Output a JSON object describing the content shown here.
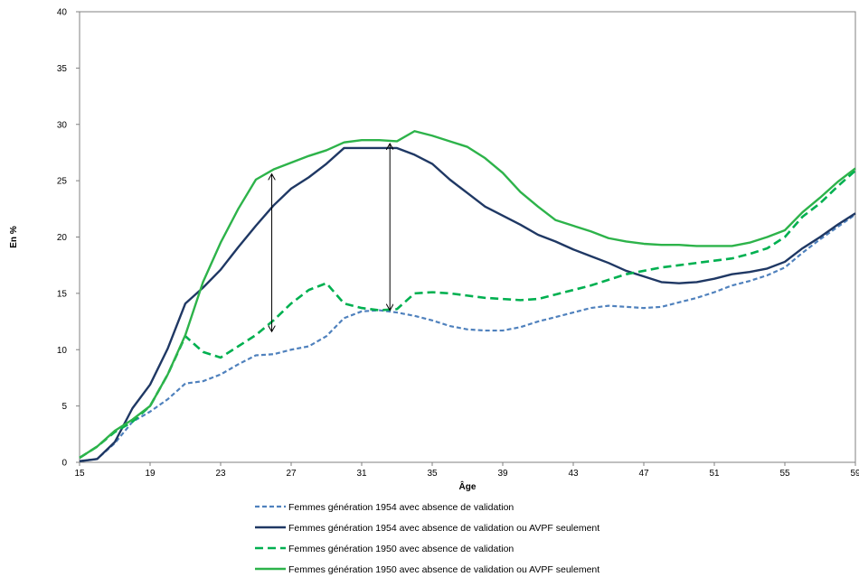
{
  "chart_data": {
    "type": "line",
    "xlabel": "Âge",
    "ylabel": "En %",
    "xlim": [
      15,
      59
    ],
    "ylim": [
      0,
      40
    ],
    "x_ticks": [
      15,
      19,
      23,
      27,
      31,
      35,
      39,
      43,
      47,
      51,
      55,
      59
    ],
    "y_ticks": [
      0,
      5,
      10,
      15,
      20,
      25,
      30,
      35,
      40
    ],
    "grid": false,
    "legend_position": "bottom",
    "x": [
      15,
      16,
      17,
      18,
      19,
      20,
      21,
      22,
      23,
      24,
      25,
      26,
      27,
      28,
      29,
      30,
      31,
      32,
      33,
      34,
      35,
      36,
      37,
      38,
      39,
      40,
      41,
      42,
      43,
      44,
      45,
      46,
      47,
      48,
      49,
      50,
      51,
      52,
      53,
      54,
      55,
      56,
      57,
      58,
      59
    ],
    "series": [
      {
        "name": "Femmes génération 1954 avec absence de validation",
        "color": "#4F81BD",
        "dash": "dashed",
        "values": [
          0.1,
          0.3,
          1.7,
          3.6,
          4.5,
          5.6,
          7.0,
          7.2,
          7.8,
          8.7,
          9.5,
          9.6,
          10.0,
          10.3,
          11.2,
          12.8,
          13.4,
          13.5,
          13.3,
          13.0,
          12.6,
          12.1,
          11.8,
          11.7,
          11.7,
          12.0,
          12.5,
          12.9,
          13.3,
          13.7,
          13.9,
          13.8,
          13.7,
          13.8,
          14.2,
          14.6,
          15.1,
          15.7,
          16.1,
          16.6,
          17.3,
          18.6,
          19.8,
          20.9,
          22.0
        ]
      },
      {
        "name": "Femmes génération 1954 avec absence de validation ou AVPF seulement",
        "color": "#1F3864",
        "dash": "solid",
        "values": [
          0.1,
          0.3,
          1.8,
          4.8,
          6.9,
          10.1,
          14.1,
          15.5,
          17.1,
          19.1,
          21.0,
          22.8,
          24.3,
          25.3,
          26.5,
          27.9,
          27.9,
          27.9,
          27.9,
          27.3,
          26.5,
          25.1,
          23.9,
          22.7,
          21.9,
          21.1,
          20.2,
          19.6,
          18.9,
          18.3,
          17.7,
          17.0,
          16.5,
          16.0,
          15.9,
          16.0,
          16.3,
          16.7,
          16.9,
          17.2,
          17.8,
          19.0,
          20.0,
          21.1,
          22.1
        ]
      },
      {
        "name": "Femmes génération 1950 avec absence de validation",
        "color": "#00B050",
        "dash": "dashed",
        "values": [
          0.4,
          1.4,
          2.7,
          3.6,
          5.0,
          7.8,
          11.2,
          9.8,
          9.3,
          10.3,
          11.3,
          12.6,
          14.1,
          15.3,
          15.9,
          14.1,
          13.7,
          13.5,
          13.6,
          15.0,
          15.1,
          15.0,
          14.8,
          14.6,
          14.5,
          14.4,
          14.5,
          14.9,
          15.3,
          15.7,
          16.2,
          16.7,
          17.0,
          17.3,
          17.5,
          17.7,
          17.9,
          18.1,
          18.5,
          19.0,
          20.0,
          21.8,
          23.0,
          24.5,
          25.9
        ]
      },
      {
        "name": "Femmes génération 1950 avec absence de validation ou AVPF seulement",
        "color": "#2DB34A",
        "dash": "solid",
        "values": [
          0.4,
          1.4,
          2.8,
          3.8,
          5.0,
          7.8,
          11.3,
          16.0,
          19.5,
          22.5,
          25.1,
          26.0,
          26.6,
          27.2,
          27.7,
          28.4,
          28.6,
          28.6,
          28.5,
          29.4,
          29.0,
          28.5,
          28.0,
          27.0,
          25.7,
          24.0,
          22.7,
          21.5,
          21.0,
          20.5,
          19.9,
          19.6,
          19.4,
          19.3,
          19.3,
          19.2,
          19.2,
          19.2,
          19.5,
          20.0,
          20.6,
          22.2,
          23.5,
          24.9,
          26.1
        ]
      }
    ],
    "annotations": [
      {
        "type": "double-arrow",
        "x": 25.9,
        "y_from": 11.6,
        "y_to": 25.6
      },
      {
        "type": "double-arrow",
        "x": 32.6,
        "y_from": 13.5,
        "y_to": 28.3
      }
    ]
  }
}
